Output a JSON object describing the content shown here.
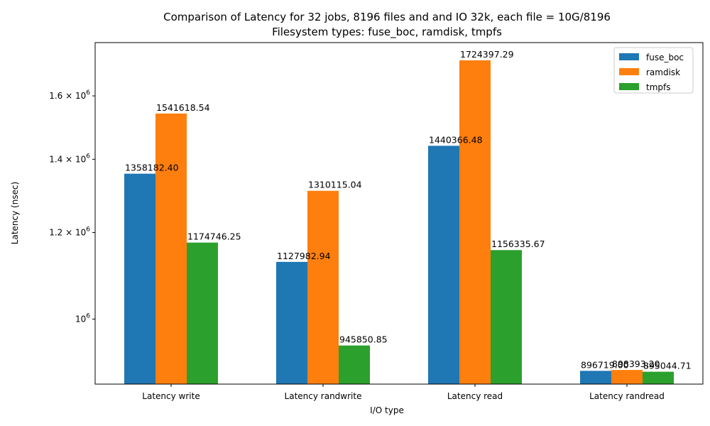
{
  "chart_data": {
    "type": "bar",
    "title_lines": [
      "Comparison of Latency for 32 jobs, 8196 files and  and IO 32k, each file = 10G/8196",
      "Filesystem types: fuse_boc, ramdisk, tmpfs"
    ],
    "xlabel": "I/O type",
    "ylabel": "Latency (nsec)",
    "y_scale": "log",
    "ylim": [
      872000,
      1790000
    ],
    "categories": [
      "Latency write",
      "Latency randwrite",
      "Latency read",
      "Latency randread"
    ],
    "series": [
      {
        "name": "fuse_boc",
        "color": "#1f77b4",
        "values": [
          1358182.4,
          1127982.94,
          1440366.48,
          896719.0
        ],
        "labels": [
          "1358182.40",
          "1127982.94",
          "1440366.48",
          "896719.00"
        ]
      },
      {
        "name": "ramdisk",
        "color": "#ff7f0e",
        "values": [
          1541618.54,
          1310115.04,
          1724397.29,
          898393.2
        ],
        "labels": [
          "1541618.54",
          "1310115.04",
          "1724397.29",
          "898393.20"
        ]
      },
      {
        "name": "tmpfs",
        "color": "#2ca02c",
        "values": [
          1174746.25,
          945850.85,
          1156335.67,
          895044.71
        ],
        "labels": [
          "1174746.25",
          "945850.85",
          "1156335.67",
          "895044.71"
        ]
      }
    ],
    "y_ticks": [
      {
        "value": 1000000,
        "mant": "10",
        "exp": "6"
      },
      {
        "value": 1200000,
        "mant": "1.2 × 10",
        "exp": "6"
      },
      {
        "value": 1400000,
        "mant": "1.4 × 10",
        "exp": "6"
      },
      {
        "value": 1600000,
        "mant": "1.6 × 10",
        "exp": "6"
      }
    ],
    "legend_position": "top-right",
    "grid": false
  }
}
